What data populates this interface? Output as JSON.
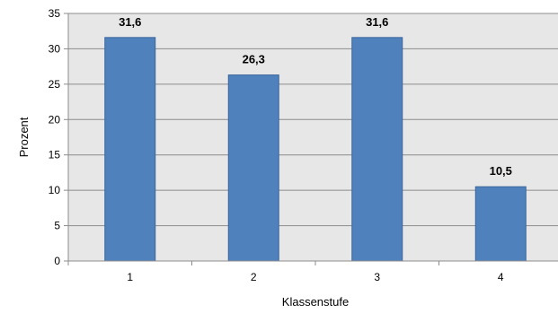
{
  "chart_data": {
    "type": "bar",
    "categories": [
      "1",
      "2",
      "3",
      "4"
    ],
    "values": [
      31.6,
      26.3,
      31.6,
      10.5
    ],
    "data_labels": [
      "31,6",
      "26,3",
      "31,6",
      "10,5"
    ],
    "xlabel": "Klassenstufe",
    "ylabel": "Prozent",
    "ylim": [
      0,
      35
    ],
    "yticks": [
      0,
      5,
      10,
      15,
      20,
      25,
      30,
      35
    ],
    "grid": true,
    "legend": "none",
    "colors": {
      "bar": "#4f81bd",
      "bar_edge": "#3a669c",
      "plot_background": "#e7e7e7",
      "grid": "#8c8c8c",
      "axis": "#8c8c8c"
    }
  }
}
